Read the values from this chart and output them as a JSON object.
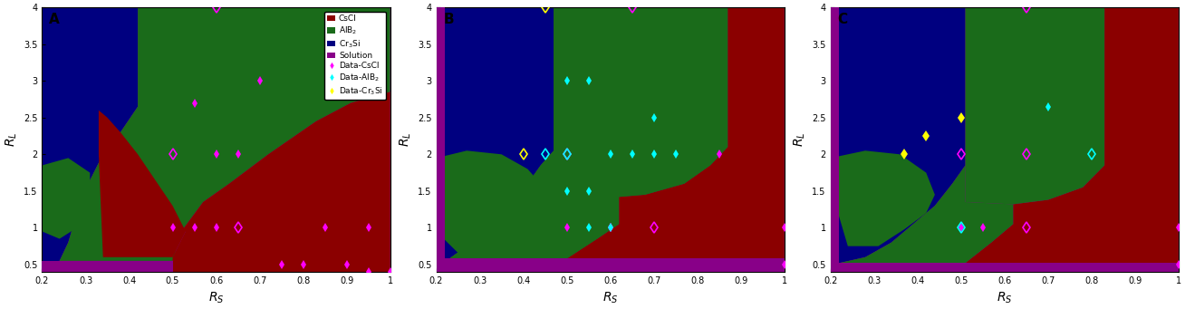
{
  "xlim": [
    0.2,
    1.0
  ],
  "ylim": [
    0.4,
    4.0
  ],
  "xticks": [
    0.2,
    0.3,
    0.4,
    0.5,
    0.6,
    0.7,
    0.8,
    0.9,
    1.0
  ],
  "yticks": [
    0.5,
    1.0,
    1.5,
    2.0,
    2.5,
    3.0,
    3.5,
    4.0
  ],
  "xlabel": "R_S",
  "ylabel": "R_L",
  "panel_labels": [
    "A",
    "B",
    "C"
  ],
  "colors": {
    "CsCl": "#8B0000",
    "AlB2": "#1a6b1a",
    "Cr3Si": "#000080",
    "Solution": "#880088"
  },
  "marker_colors": {
    "CsCl": "#FF00FF",
    "AlB2": "#00FFFF",
    "Cr3Si": "#FFFF00"
  },
  "panelA": {
    "data_CsCl_filled": [
      [
        0.5,
        1.0
      ],
      [
        0.55,
        1.0
      ],
      [
        0.6,
        1.0
      ],
      [
        0.55,
        2.7
      ],
      [
        0.6,
        2.0
      ],
      [
        0.65,
        2.0
      ],
      [
        0.7,
        3.0
      ],
      [
        0.75,
        0.5
      ],
      [
        0.8,
        0.5
      ],
      [
        0.85,
        1.0
      ],
      [
        0.9,
        0.5
      ],
      [
        0.95,
        1.0
      ],
      [
        0.95,
        0.4
      ],
      [
        1.0,
        0.4
      ]
    ],
    "data_CsCl_open": [
      [
        0.5,
        2.0
      ],
      [
        0.65,
        1.0
      ]
    ],
    "data_CsCl_top_open": [
      [
        0.6,
        4.0
      ]
    ],
    "data_AlB2_filled": [],
    "data_AlB2_open": [],
    "data_Cr3Si_filled": [],
    "data_Cr3Si_open": [],
    "data_Cr3Si_top_open": []
  },
  "panelB": {
    "data_CsCl_filled": [
      [
        0.5,
        1.0
      ],
      [
        0.6,
        1.0
      ],
      [
        0.6,
        1.0
      ],
      [
        0.85,
        2.0
      ],
      [
        1.0,
        1.0
      ],
      [
        1.0,
        0.5
      ]
    ],
    "data_CsCl_open": [
      [
        0.5,
        2.0
      ],
      [
        0.7,
        1.0
      ]
    ],
    "data_CsCl_top_open": [
      [
        0.65,
        4.0
      ]
    ],
    "data_AlB2_filled": [
      [
        0.5,
        1.5
      ],
      [
        0.55,
        1.5
      ],
      [
        0.5,
        3.0
      ],
      [
        0.55,
        3.0
      ],
      [
        0.55,
        1.0
      ],
      [
        0.6,
        1.0
      ],
      [
        0.6,
        2.0
      ],
      [
        0.65,
        2.0
      ],
      [
        0.7,
        2.5
      ],
      [
        0.7,
        2.0
      ],
      [
        0.75,
        2.0
      ]
    ],
    "data_AlB2_open": [
      [
        0.45,
        2.0
      ],
      [
        0.5,
        2.0
      ]
    ],
    "data_Cr3Si_filled": [],
    "data_Cr3Si_open": [
      [
        0.4,
        2.0
      ]
    ],
    "data_Cr3Si_top_open": [
      [
        0.45,
        4.0
      ]
    ]
  },
  "panelC": {
    "data_CsCl_filled": [
      [
        0.5,
        1.0
      ],
      [
        0.55,
        1.0
      ],
      [
        1.0,
        1.0
      ],
      [
        1.0,
        0.5
      ]
    ],
    "data_CsCl_open": [
      [
        0.5,
        2.0
      ],
      [
        0.65,
        2.0
      ],
      [
        0.65,
        1.0
      ]
    ],
    "data_CsCl_top_open": [
      [
        0.65,
        4.0
      ]
    ],
    "data_AlB2_filled": [
      [
        0.7,
        2.65
      ]
    ],
    "data_AlB2_open": [
      [
        0.5,
        1.0
      ],
      [
        0.8,
        2.0
      ]
    ],
    "data_Cr3Si_filled": [
      [
        0.37,
        2.0
      ],
      [
        0.42,
        2.25
      ],
      [
        0.5,
        2.5
      ]
    ],
    "data_Cr3Si_open": [],
    "data_Cr3Si_top_open": []
  }
}
